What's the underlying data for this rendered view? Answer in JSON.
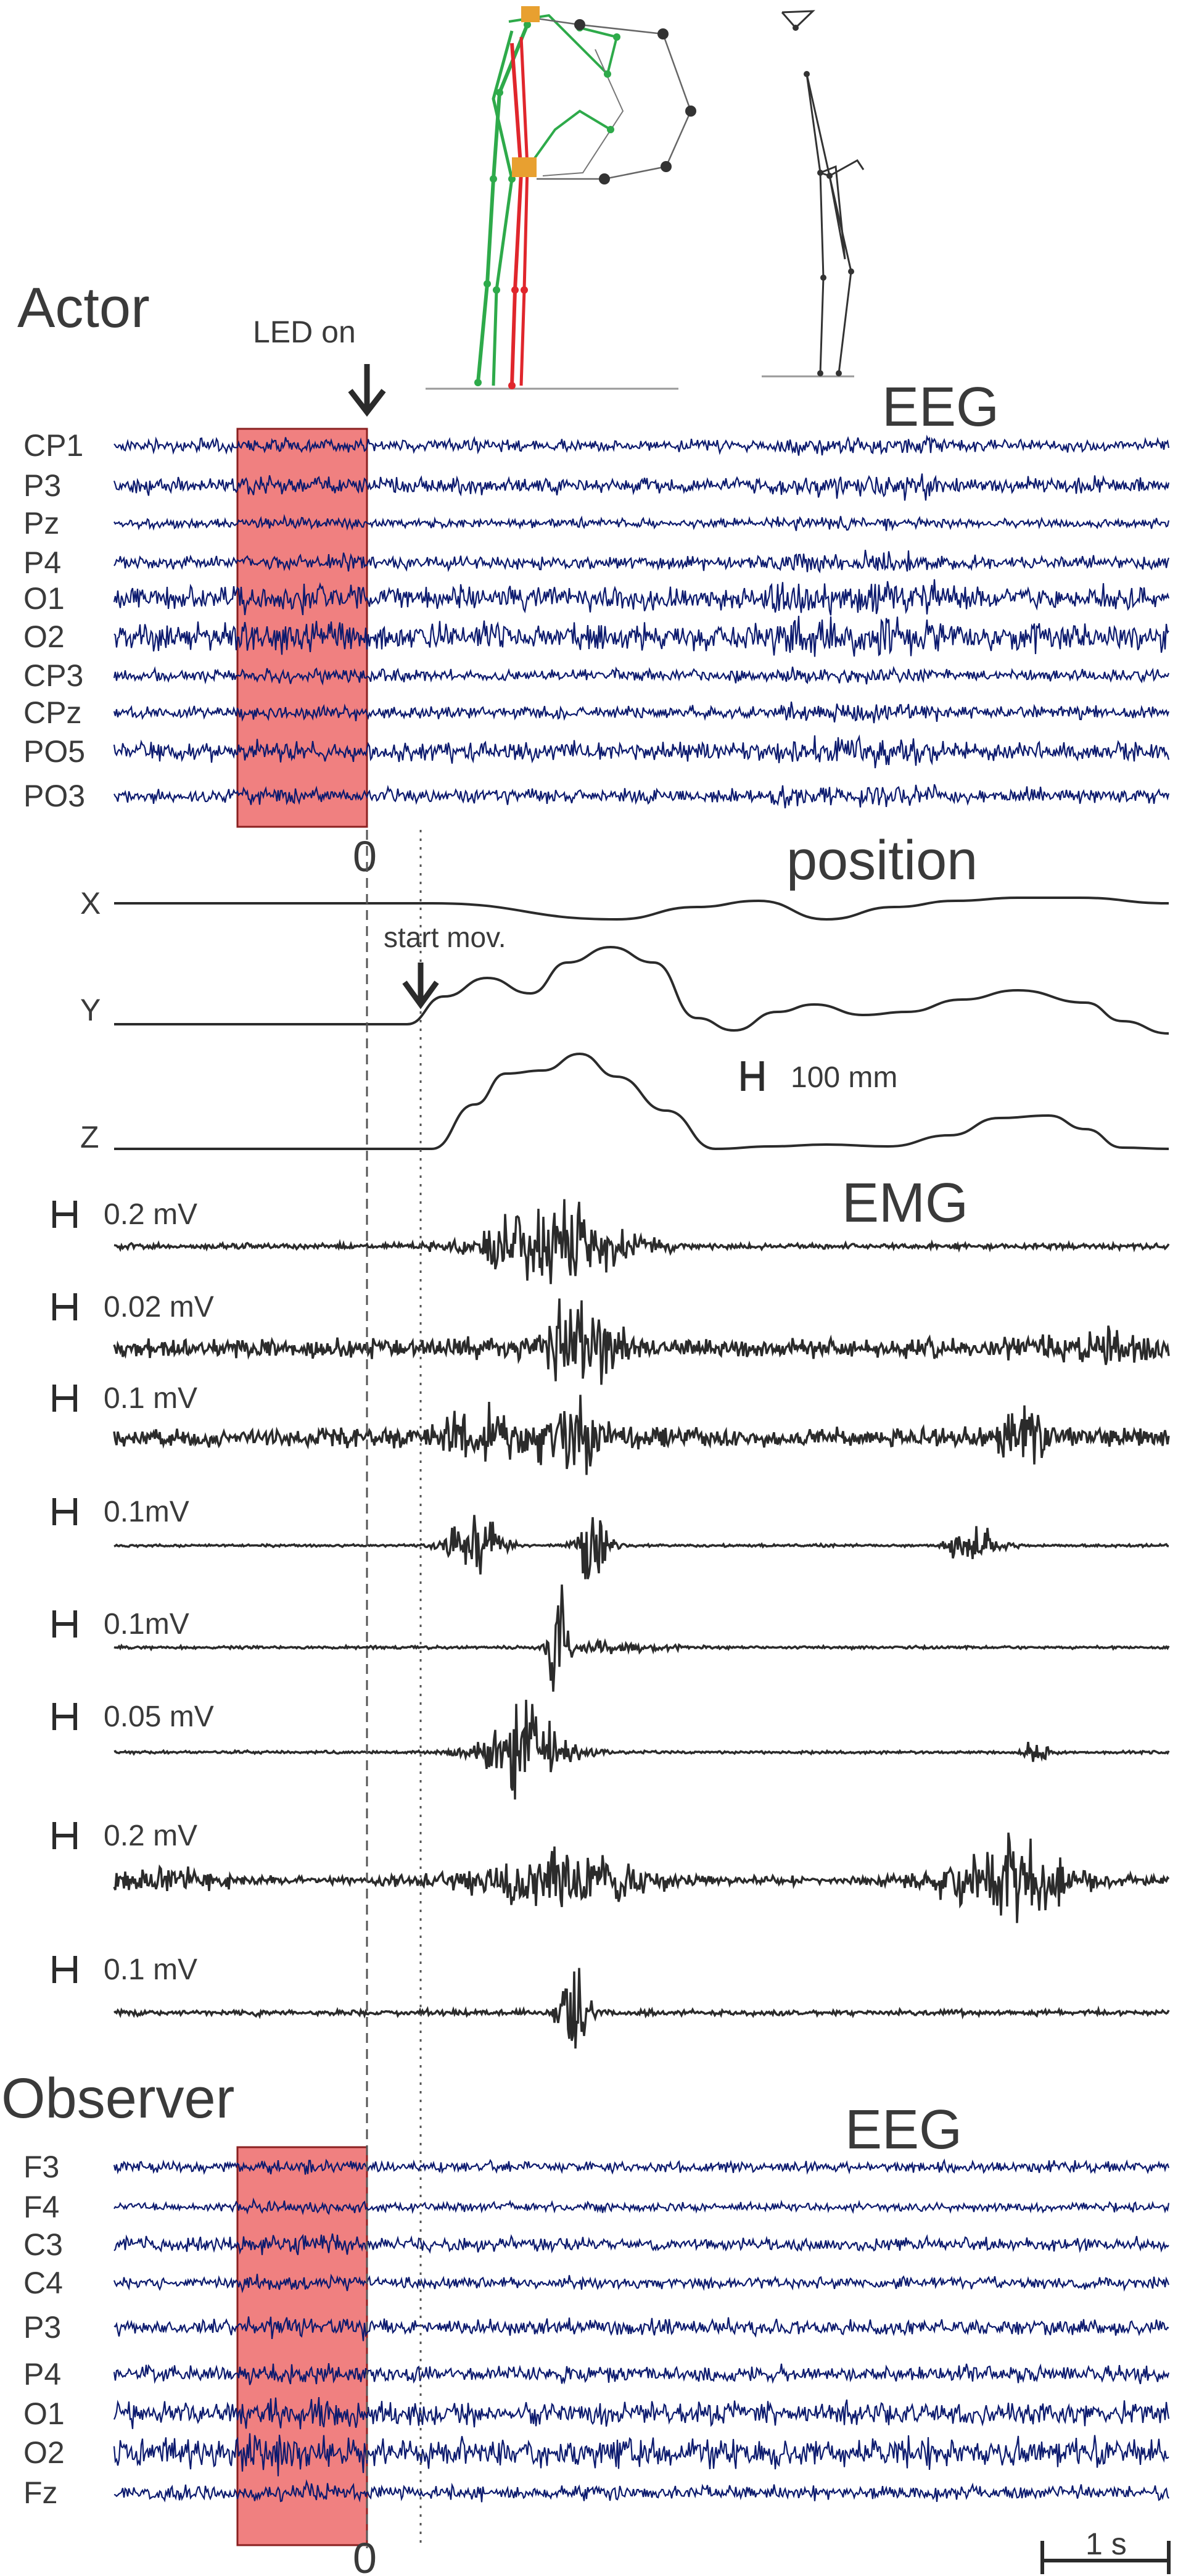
{
  "actor_heading": "Actor",
  "observer_heading": "Observer",
  "led_label": "LED on",
  "start_label": "start mov.",
  "eeg_title_actor": "EEG",
  "eeg_title_observer": "EEG",
  "position_title": "position",
  "emg_title": "EMG",
  "zero_top": "0",
  "zero_bottom": "0",
  "position_scale": "100 mm",
  "time_scale": "1 s",
  "actor_channels": [
    "CP1",
    "P3",
    "Pz",
    "P4",
    "O1",
    "O2",
    "CP3",
    "CPz",
    "PO5",
    "PO3"
  ],
  "observer_channels": [
    "F3",
    "F4",
    "C3",
    "C4",
    "P3",
    "P4",
    "O1",
    "O2",
    "Fz"
  ],
  "position_channels": [
    "X",
    "Y",
    "Z"
  ],
  "emg_scales": [
    "0.2 mV",
    "0.02 mV",
    "0.1 mV",
    "0.1mV",
    "0.1mV",
    "0.05 mV",
    "0.2 mV",
    "0.1 mV"
  ],
  "colors": {
    "eeg_trace": "#0c1a6e",
    "trace_dark": "#2b2b2b",
    "highlight": "#f08080",
    "stick_green": "#2eaa4a",
    "stick_red": "#e0262c",
    "stick_orange": "#e8a030"
  }
}
